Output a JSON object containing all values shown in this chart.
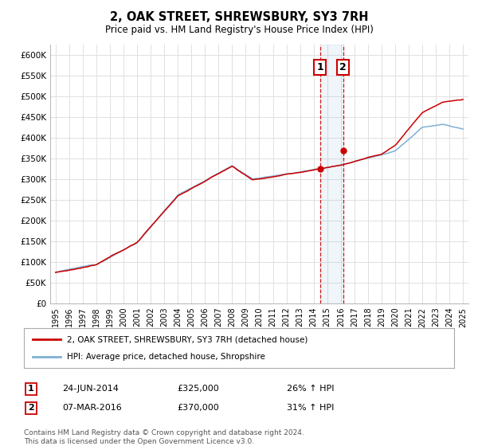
{
  "title": "2, OAK STREET, SHREWSBURY, SY3 7RH",
  "subtitle": "Price paid vs. HM Land Registry's House Price Index (HPI)",
  "ylim": [
    0,
    625000
  ],
  "yticks": [
    0,
    50000,
    100000,
    150000,
    200000,
    250000,
    300000,
    350000,
    400000,
    450000,
    500000,
    550000,
    600000
  ],
  "ytick_labels": [
    "£0",
    "£50K",
    "£100K",
    "£150K",
    "£200K",
    "£250K",
    "£300K",
    "£350K",
    "£400K",
    "£450K",
    "£500K",
    "£550K",
    "£600K"
  ],
  "background_color": "#ffffff",
  "grid_color": "#e0e0e0",
  "hpi_color": "#7eb0d4",
  "price_color": "#cc0000",
  "purchase1_date": 2014.48,
  "purchase1_price": 325000,
  "purchase2_date": 2016.18,
  "purchase2_price": 370000,
  "legend_label_price": "2, OAK STREET, SHREWSBURY, SY3 7RH (detached house)",
  "legend_label_hpi": "HPI: Average price, detached house, Shropshire",
  "note1_date": "24-JUN-2014",
  "note1_price": "£325,000",
  "note1_hpi": "26% ↑ HPI",
  "note2_date": "07-MAR-2016",
  "note2_price": "£370,000",
  "note2_hpi": "31% ↑ HPI",
  "footnote1": "Contains HM Land Registry data © Crown copyright and database right 2024.",
  "footnote2": "This data is licensed under the Open Government Licence v3.0.",
  "xstart": 1995,
  "xend": 2025
}
